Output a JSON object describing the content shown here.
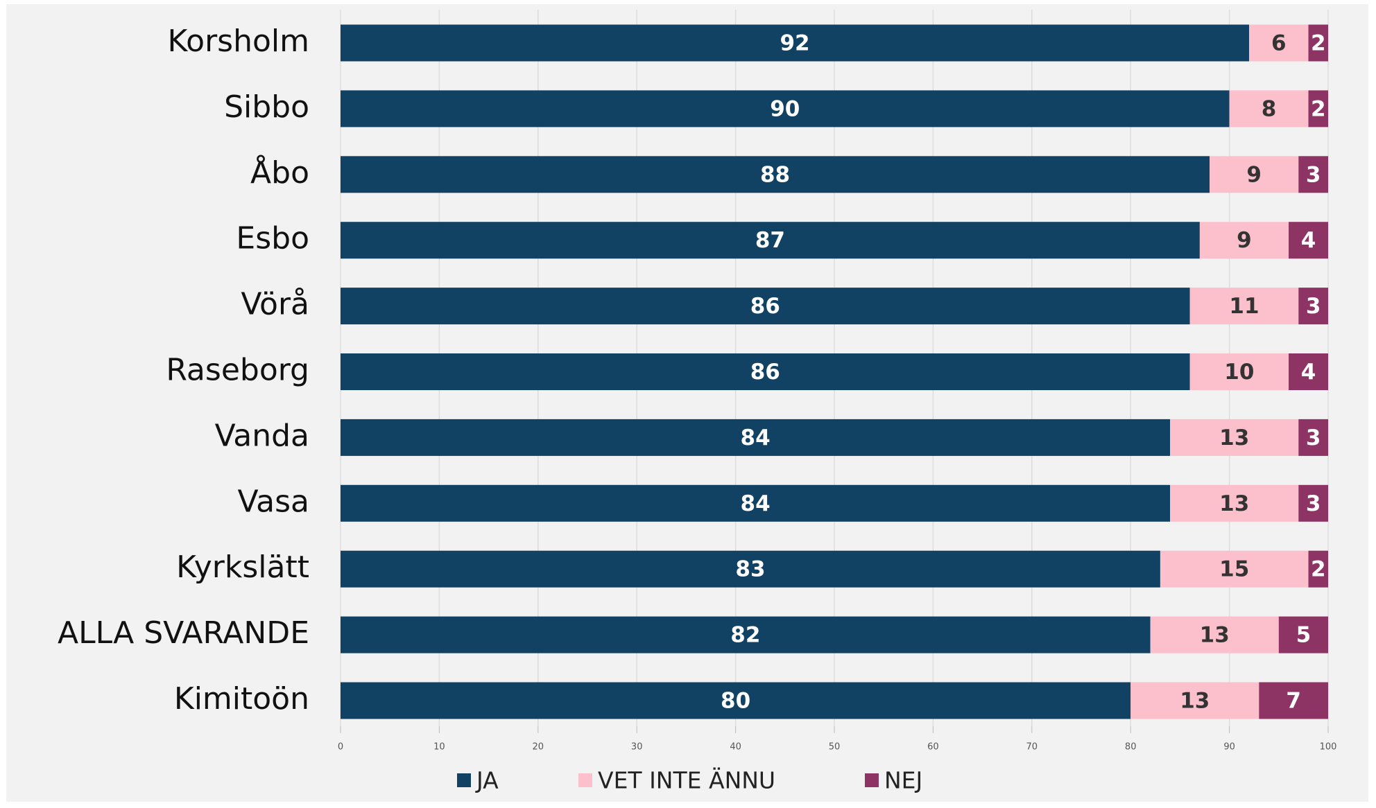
{
  "chart_data": {
    "type": "stacked_barh",
    "categories": [
      "Korsholm",
      "Sibbo",
      "Åbo",
      "Esbo",
      "Vörå",
      "Raseborg",
      "Vanda",
      "Vasa",
      "Kyrkslätt",
      "ALLA SVARANDE",
      "Kimitoön"
    ],
    "series": [
      {
        "name": "JA",
        "color": "#124263",
        "values": [
          92,
          90,
          88,
          87,
          86,
          86,
          84,
          84,
          83,
          82,
          80
        ]
      },
      {
        "name": "VET INTE ÄNNU",
        "color": "#fbc0cc",
        "values": [
          6,
          8,
          9,
          9,
          11,
          10,
          13,
          13,
          15,
          13,
          13
        ]
      },
      {
        "name": "NEJ",
        "color": "#8e3464",
        "values": [
          2,
          2,
          3,
          4,
          3,
          4,
          3,
          3,
          2,
          5,
          7
        ]
      }
    ],
    "xlim": [
      0,
      100
    ],
    "xticks": [
      0,
      10,
      20,
      30,
      40,
      50,
      60,
      70,
      80,
      90,
      100
    ],
    "grid": true,
    "legend": "bottom"
  }
}
